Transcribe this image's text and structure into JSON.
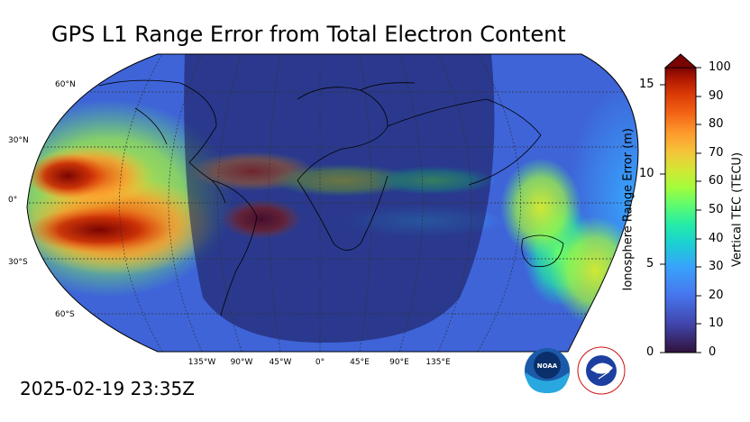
{
  "title": "GPS L1 Range Error from Total Electron Content",
  "timestamp": "2025-02-19 23:35Z",
  "map": {
    "latitude_labels": [
      "60°N",
      "30°N",
      "0°",
      "30°S",
      "60°S"
    ],
    "longitude_labels": [
      "135°W",
      "90°W",
      "45°W",
      "0°",
      "45°E",
      "90°E",
      "135°E"
    ]
  },
  "colorbar": {
    "left_axis_label": "Ionosphere Range Error (m)",
    "right_axis_label": "Vertical TEC (TECU)",
    "left_ticks": [
      "0",
      "5",
      "10",
      "15"
    ],
    "right_ticks": [
      "0",
      "10",
      "20",
      "30",
      "40",
      "50",
      "60",
      "70",
      "80",
      "90",
      "100"
    ],
    "colors": [
      "#30123b",
      "#4145ab",
      "#4675ed",
      "#39a2fc",
      "#1bcfd4",
      "#24eca6",
      "#61fc6c",
      "#a4fc3b",
      "#d1e834",
      "#f3c63a",
      "#fe9b2d",
      "#f36315",
      "#d93806",
      "#b11901",
      "#7a0403"
    ]
  },
  "logos": {
    "noaa": "NOAA",
    "nws": "NATIONAL WEATHER SERVICE"
  }
}
